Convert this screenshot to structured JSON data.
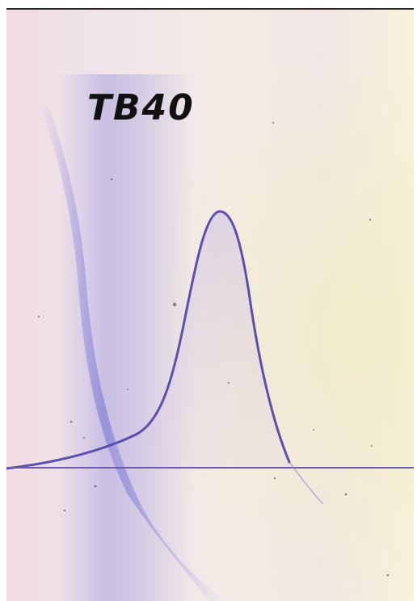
{
  "photo": {
    "label": "TB40",
    "colors": {
      "paper": "#f4efe9",
      "stain_blue": "#7f7bd8",
      "stain_pink": "#e9c6cf",
      "stain_yellow": "#efe7c6",
      "curve": "#5a4fb0",
      "baseline": "#6a5ca8",
      "text": "#111111"
    }
  }
}
